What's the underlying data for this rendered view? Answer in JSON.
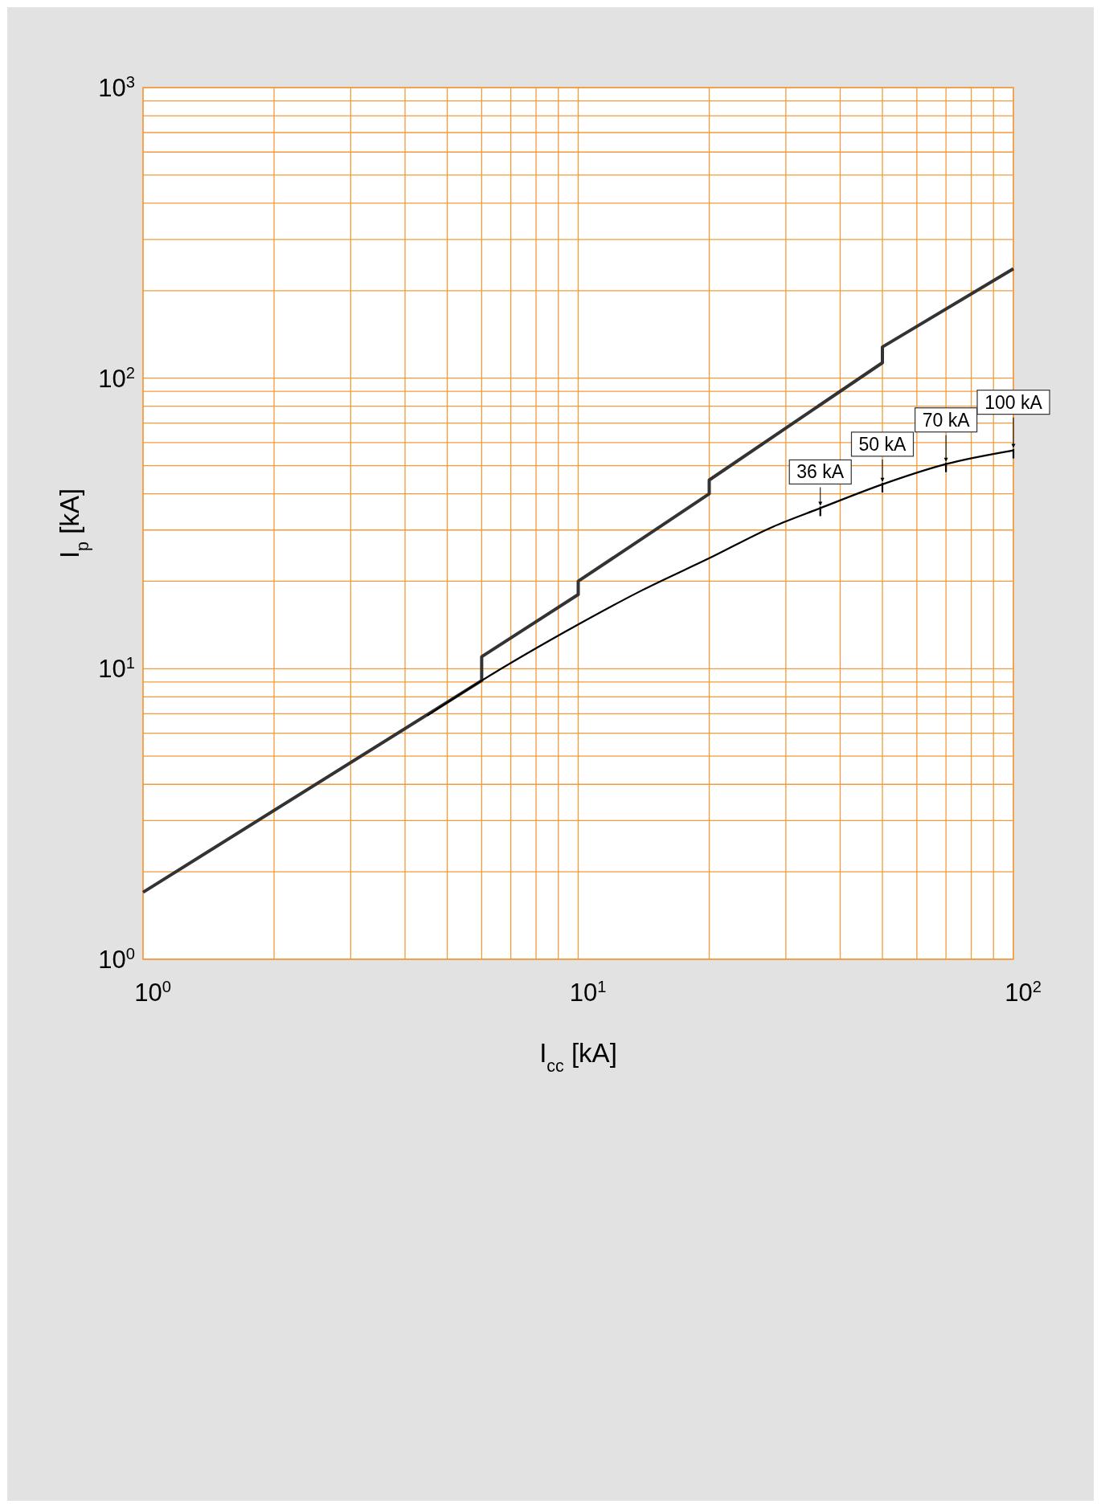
{
  "chart_data": {
    "type": "line",
    "xlabel": "I$_{cc}$ [kA]",
    "ylabel": "I$_{p}$ [kA]",
    "log": "xy",
    "grid": true,
    "xlim": [
      1,
      100
    ],
    "xticks": [
      {
        "value": 1,
        "label": "10$^{0}$"
      },
      {
        "value": 2,
        "label": null
      },
      {
        "value": 3,
        "label": null
      },
      {
        "value": 4,
        "label": null
      },
      {
        "value": 5,
        "label": null
      },
      {
        "value": 6,
        "label": null
      },
      {
        "value": 7,
        "label": null
      },
      {
        "value": 8,
        "label": null
      },
      {
        "value": 9,
        "label": null
      },
      {
        "value": 10,
        "label": "10$^{1}$"
      },
      {
        "value": 20,
        "label": null
      },
      {
        "value": 30,
        "label": null
      },
      {
        "value": 40,
        "label": null
      },
      {
        "value": 50,
        "label": null
      },
      {
        "value": 60,
        "label": null
      },
      {
        "value": 70,
        "label": null
      },
      {
        "value": 80,
        "label": null
      },
      {
        "value": 90,
        "label": null
      },
      {
        "value": 100,
        "label": "10$^{2}$"
      }
    ],
    "ylim": [
      1,
      1000
    ],
    "yticks": [
      {
        "value": 1,
        "label": "10$^{0}$"
      },
      {
        "value": 2,
        "label": null
      },
      {
        "value": 3,
        "label": null
      },
      {
        "value": 4,
        "label": null
      },
      {
        "value": 5,
        "label": null
      },
      {
        "value": 6,
        "label": null
      },
      {
        "value": 7,
        "label": null
      },
      {
        "value": 8,
        "label": null
      },
      {
        "value": 9,
        "label": null
      },
      {
        "value": 10,
        "label": "10$^{1}$"
      },
      {
        "value": 20,
        "label": null
      },
      {
        "value": 30,
        "label": null
      },
      {
        "value": 40,
        "label": null
      },
      {
        "value": 50,
        "label": null
      },
      {
        "value": 60,
        "label": null
      },
      {
        "value": 70,
        "label": null
      },
      {
        "value": 80,
        "label": null
      },
      {
        "value": 90,
        "label": null
      },
      {
        "value": 100,
        "label": "10$^{2}$"
      },
      {
        "value": 200,
        "label": null
      },
      {
        "value": 300,
        "label": null
      },
      {
        "value": 400,
        "label": null
      },
      {
        "value": 500,
        "label": null
      },
      {
        "value": 600,
        "label": null
      },
      {
        "value": 700,
        "label": null
      },
      {
        "value": 800,
        "label": null
      },
      {
        "value": 900,
        "label": null
      },
      {
        "value": 1000,
        "label": "10$^{3}$"
      }
    ],
    "series": [
      {
        "color": "#333333",
        "x": [
          1,
          6,
          6,
          10,
          10,
          20,
          20,
          50,
          50,
          100
        ],
        "values": [
          1.7,
          9.1,
          11,
          18,
          20,
          40,
          44.6,
          113,
          128,
          238
        ]
      },
      {
        "color": "#000000",
        "x": [
          4.5,
          6,
          10,
          14,
          20,
          28,
          36,
          50,
          70,
          100
        ],
        "values": [
          6.9,
          9.1,
          14.2,
          18.6,
          24,
          30.8,
          35.7,
          43.1,
          50.6,
          56.4
        ]
      }
    ],
    "annotations": [
      {
        "text": "36 kA",
        "x": 36,
        "y": 35.7
      },
      {
        "text": "50 kA",
        "x": 50,
        "y": 43.1
      },
      {
        "text": "70 kA",
        "x": 70,
        "y": 50.6
      },
      {
        "text": "100 kA",
        "x": 100,
        "y": 56.4
      }
    ]
  }
}
